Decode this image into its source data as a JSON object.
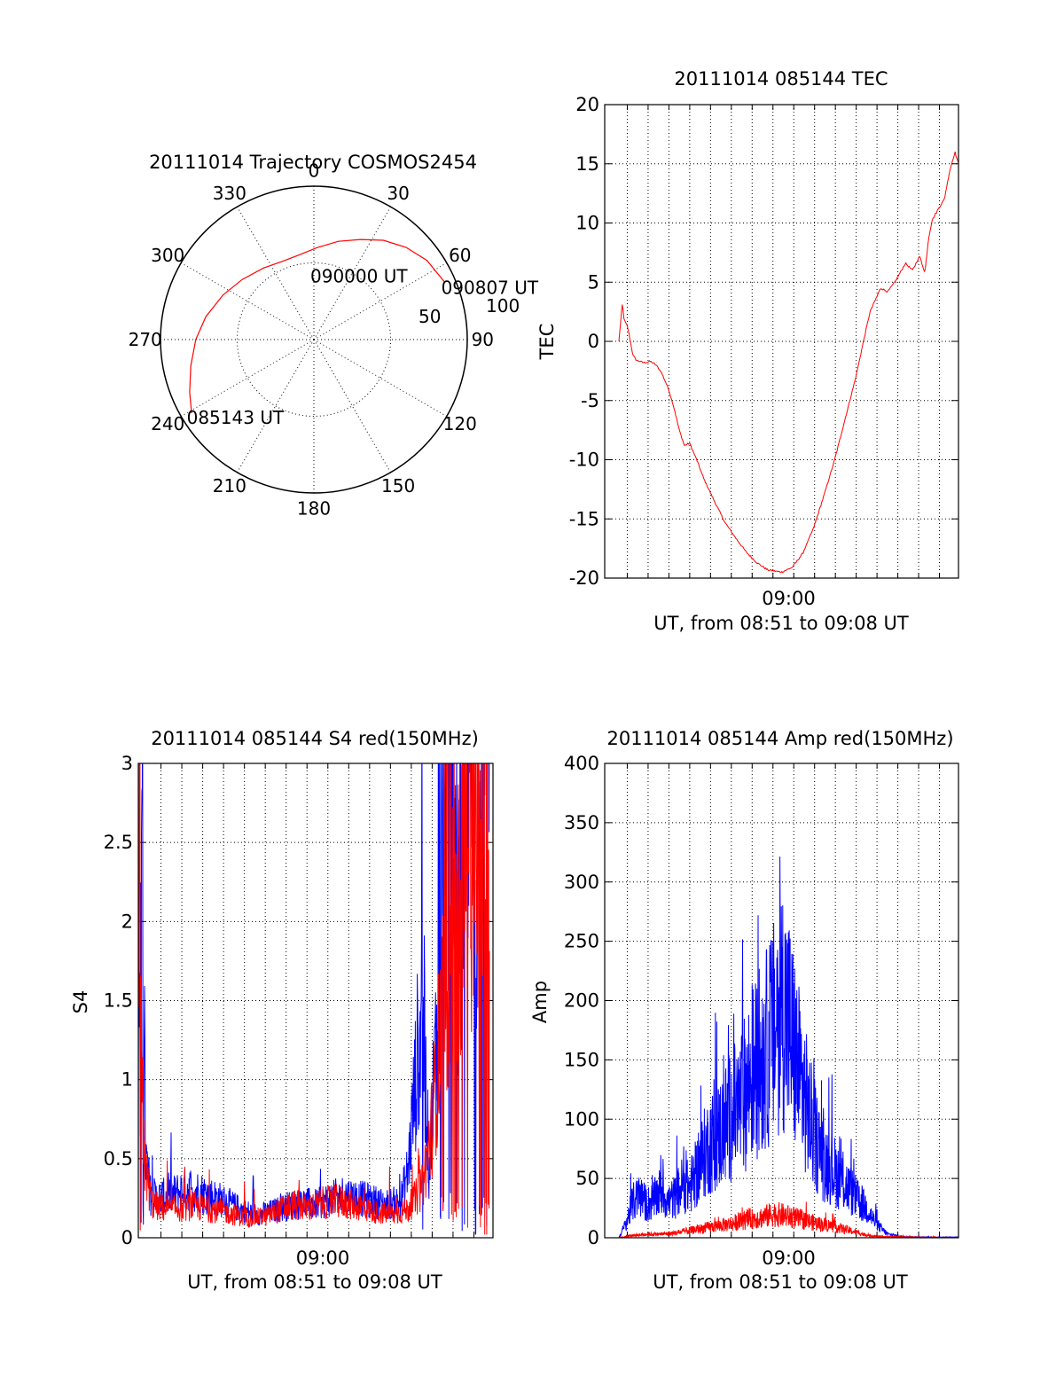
{
  "colors": {
    "red": "#ff0000",
    "blue": "#0000ff",
    "axis": "#000000",
    "grid": "#000000",
    "background": "#ffffff"
  },
  "chart_data": [
    {
      "id": "trajectory",
      "type": "polar",
      "title": "20111014 Trajectory COSMOS2454",
      "azimuth_labels": [
        "0",
        "30",
        "60",
        "90",
        "120",
        "150",
        "180",
        "210",
        "240",
        "270",
        "300",
        "330"
      ],
      "radial_labels": [
        "50",
        "100"
      ],
      "grid": true,
      "annotations": [
        {
          "text": "090807 UT",
          "az": 68,
          "zen": 92
        },
        {
          "text": "090000 UT",
          "az": 0,
          "zen": 42
        },
        {
          "text": "085143 UT",
          "az": 238,
          "zen": 95
        }
      ],
      "series": [
        {
          "color": "red",
          "points": [
            [
              239,
              93
            ],
            [
              247,
              88
            ],
            [
              258,
              82
            ],
            [
              270,
              77
            ],
            [
              282,
              72
            ],
            [
              296,
              66
            ],
            [
              310,
              61
            ],
            [
              325,
              57
            ],
            [
              338,
              55
            ],
            [
              350,
              56
            ],
            [
              2,
              60
            ],
            [
              14,
              66
            ],
            [
              25,
              72
            ],
            [
              35,
              79
            ],
            [
              45,
              85
            ],
            [
              55,
              90
            ],
            [
              66,
              93
            ]
          ]
        }
      ]
    },
    {
      "id": "tec",
      "type": "line",
      "title": "20111014 085144 TEC",
      "xlabel": "UT, from 08:51 to 09:08 UT",
      "ylabel": "TEC",
      "x_tick_labels": [
        {
          "x": 0.52,
          "label": "09:00"
        }
      ],
      "ylim": [
        -20,
        20
      ],
      "yticks": [
        -20,
        -15,
        -10,
        -5,
        0,
        5,
        10,
        15,
        20
      ],
      "grid": true,
      "series": [
        {
          "color": "red",
          "points": [
            [
              0.04,
              0
            ],
            [
              0.05,
              3.2
            ],
            [
              0.055,
              1.8
            ],
            [
              0.065,
              1.2
            ],
            [
              0.08,
              -1.2
            ],
            [
              0.09,
              -1.6
            ],
            [
              0.11,
              -1.8
            ],
            [
              0.13,
              -1.7
            ],
            [
              0.145,
              -2
            ],
            [
              0.16,
              -2.6
            ],
            [
              0.18,
              -4
            ],
            [
              0.195,
              -5.5
            ],
            [
              0.21,
              -7.4
            ],
            [
              0.225,
              -8.8
            ],
            [
              0.24,
              -8.6
            ],
            [
              0.26,
              -10
            ],
            [
              0.28,
              -11.6
            ],
            [
              0.31,
              -13.5
            ],
            [
              0.34,
              -15.3
            ],
            [
              0.37,
              -16.6
            ],
            [
              0.4,
              -17.8
            ],
            [
              0.43,
              -18.7
            ],
            [
              0.46,
              -19.3
            ],
            [
              0.5,
              -19.5
            ],
            [
              0.53,
              -19.1
            ],
            [
              0.56,
              -17.9
            ],
            [
              0.59,
              -15.8
            ],
            [
              0.62,
              -13
            ],
            [
              0.65,
              -10
            ],
            [
              0.68,
              -6.5
            ],
            [
              0.71,
              -3
            ],
            [
              0.73,
              -0.2
            ],
            [
              0.75,
              2.5
            ],
            [
              0.78,
              4.5
            ],
            [
              0.8,
              4.2
            ],
            [
              0.82,
              5
            ],
            [
              0.85,
              6.6
            ],
            [
              0.87,
              6
            ],
            [
              0.89,
              7.2
            ],
            [
              0.905,
              5.8
            ],
            [
              0.915,
              8.6
            ],
            [
              0.925,
              10.2
            ],
            [
              0.945,
              11.3
            ],
            [
              0.96,
              12
            ],
            [
              0.975,
              14.4
            ],
            [
              0.99,
              16
            ],
            [
              1,
              15
            ]
          ]
        }
      ]
    },
    {
      "id": "s4",
      "type": "line",
      "title": "20111014 085144 S4 red(150MHz)",
      "xlabel": "UT, from 08:51 to 09:08 UT",
      "ylabel": "S4",
      "x_tick_labels": [
        {
          "x": 0.52,
          "label": "09:00"
        }
      ],
      "ylim": [
        0,
        3
      ],
      "yticks": [
        "0",
        "0.5",
        "1",
        "1.5",
        "2",
        "2.5",
        "3"
      ],
      "grid": true,
      "series": [
        {
          "color": "blue",
          "points": [
            [
              0,
              3
            ],
            [
              0.005,
              0.9
            ],
            [
              0.01,
              3
            ],
            [
              0.02,
              0.5
            ],
            [
              0.035,
              0.25
            ],
            [
              0.06,
              0.24
            ],
            [
              0.1,
              0.26
            ],
            [
              0.14,
              0.3
            ],
            [
              0.18,
              0.27
            ],
            [
              0.22,
              0.24
            ],
            [
              0.26,
              0.2
            ],
            [
              0.3,
              0.16
            ],
            [
              0.34,
              0.14
            ],
            [
              0.38,
              0.16
            ],
            [
              0.42,
              0.19
            ],
            [
              0.46,
              0.21
            ],
            [
              0.5,
              0.2
            ],
            [
              0.54,
              0.23
            ],
            [
              0.58,
              0.26
            ],
            [
              0.62,
              0.24
            ],
            [
              0.66,
              0.22
            ],
            [
              0.7,
              0.2
            ],
            [
              0.74,
              0.22
            ],
            [
              0.76,
              0.4
            ],
            [
              0.78,
              0.9
            ],
            [
              0.8,
              1.5
            ],
            [
              0.82,
              0.4
            ],
            [
              0.84,
              1.2
            ],
            [
              0.86,
              2.1
            ],
            [
              0.87,
              3
            ],
            [
              0.9,
              1.6
            ],
            [
              0.93,
              3
            ],
            [
              0.96,
              2.2
            ],
            [
              0.99,
              3
            ]
          ]
        },
        {
          "color": "red",
          "points": [
            [
              0,
              1.6
            ],
            [
              0.01,
              0.9
            ],
            [
              0.02,
              0.4
            ],
            [
              0.04,
              0.2
            ],
            [
              0.08,
              0.17
            ],
            [
              0.12,
              0.18
            ],
            [
              0.16,
              0.19
            ],
            [
              0.2,
              0.17
            ],
            [
              0.24,
              0.16
            ],
            [
              0.28,
              0.13
            ],
            [
              0.32,
              0.12
            ],
            [
              0.36,
              0.13
            ],
            [
              0.4,
              0.17
            ],
            [
              0.44,
              0.2
            ],
            [
              0.48,
              0.18
            ],
            [
              0.52,
              0.21
            ],
            [
              0.56,
              0.22
            ],
            [
              0.6,
              0.2
            ],
            [
              0.64,
              0.18
            ],
            [
              0.68,
              0.15
            ],
            [
              0.72,
              0.14
            ],
            [
              0.76,
              0.17
            ],
            [
              0.8,
              0.3
            ],
            [
              0.83,
              0.7
            ],
            [
              0.85,
              1.2
            ],
            [
              0.87,
              1.6
            ],
            [
              0.9,
              2
            ],
            [
              0.93,
              2.3
            ],
            [
              0.96,
              2.5
            ],
            [
              0.99,
              2.8
            ]
          ]
        }
      ]
    },
    {
      "id": "amp",
      "type": "line",
      "title": "20111014 085144 Amp red(150MHz)",
      "xlabel": "UT, from 08:51 to 09:08 UT",
      "ylabel": "Amp",
      "x_tick_labels": [
        {
          "x": 0.52,
          "label": "09:00"
        }
      ],
      "ylim": [
        0,
        400
      ],
      "yticks": [
        0,
        50,
        100,
        150,
        200,
        250,
        300,
        350,
        400
      ],
      "grid": true,
      "series": [
        {
          "color": "blue",
          "points": [
            [
              0.04,
              0
            ],
            [
              0.06,
              12
            ],
            [
              0.08,
              30
            ],
            [
              0.1,
              35
            ],
            [
              0.12,
              28
            ],
            [
              0.14,
              32
            ],
            [
              0.16,
              40
            ],
            [
              0.18,
              30
            ],
            [
              0.2,
              35
            ],
            [
              0.22,
              45
            ],
            [
              0.24,
              42
            ],
            [
              0.26,
              55
            ],
            [
              0.28,
              70
            ],
            [
              0.3,
              80
            ],
            [
              0.32,
              85
            ],
            [
              0.34,
              95
            ],
            [
              0.36,
              105
            ],
            [
              0.38,
              110
            ],
            [
              0.4,
              125
            ],
            [
              0.42,
              140
            ],
            [
              0.44,
              150
            ],
            [
              0.46,
              160
            ],
            [
              0.48,
              175
            ],
            [
              0.5,
              200
            ],
            [
              0.52,
              180
            ],
            [
              0.54,
              150
            ],
            [
              0.56,
              125
            ],
            [
              0.58,
              100
            ],
            [
              0.6,
              80
            ],
            [
              0.62,
              65
            ],
            [
              0.64,
              60
            ],
            [
              0.66,
              52
            ],
            [
              0.68,
              45
            ],
            [
              0.7,
              38
            ],
            [
              0.72,
              30
            ],
            [
              0.74,
              25
            ],
            [
              0.76,
              15
            ],
            [
              0.78,
              8
            ],
            [
              0.8,
              3
            ],
            [
              0.84,
              1
            ],
            [
              0.9,
              0.5
            ],
            [
              1,
              0.5
            ]
          ]
        },
        {
          "color": "red",
          "points": [
            [
              0.04,
              0
            ],
            [
              0.08,
              2
            ],
            [
              0.12,
              3
            ],
            [
              0.16,
              3
            ],
            [
              0.2,
              4
            ],
            [
              0.24,
              6
            ],
            [
              0.28,
              8
            ],
            [
              0.32,
              10
            ],
            [
              0.36,
              12
            ],
            [
              0.4,
              15
            ],
            [
              0.44,
              17
            ],
            [
              0.48,
              20
            ],
            [
              0.52,
              18
            ],
            [
              0.56,
              15
            ],
            [
              0.6,
              12
            ],
            [
              0.64,
              10
            ],
            [
              0.68,
              7
            ],
            [
              0.72,
              4
            ],
            [
              0.74,
              2
            ],
            [
              0.78,
              1
            ],
            [
              1,
              0
            ]
          ]
        }
      ]
    }
  ]
}
